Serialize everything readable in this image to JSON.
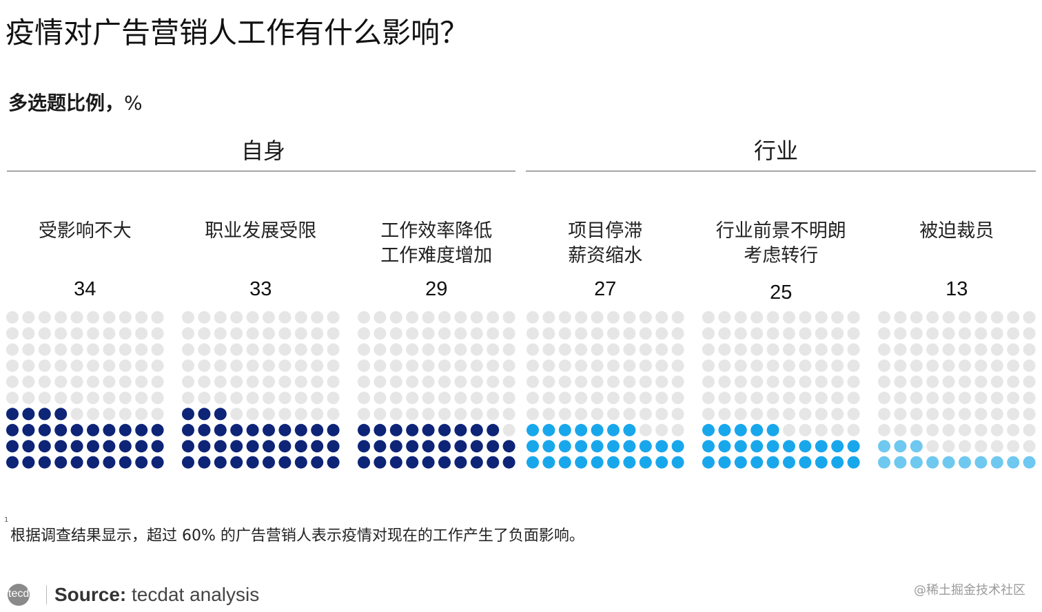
{
  "title": "疫情对广告营销人工作有什么影响？",
  "subtitle": {
    "bold": "多选题比例，",
    "unit": "%"
  },
  "colors": {
    "dark_navy": "#0d2477",
    "bright_blue": "#19a7ec",
    "light_blue": "#6fc8f0",
    "empty": "#e6e6e6"
  },
  "chart_data": {
    "type": "waffle",
    "groups": [
      {
        "label": "自身",
        "categories": [
          0,
          1,
          2
        ]
      },
      {
        "label": "行业",
        "categories": [
          3,
          4,
          5
        ]
      }
    ],
    "categories": [
      {
        "label": [
          "受影响不大"
        ],
        "value": 34,
        "color": "#0d2477"
      },
      {
        "label": [
          "职业发展受限"
        ],
        "value": 33,
        "color": "#0d2477"
      },
      {
        "label": [
          "工作效率降低",
          "工作难度增加"
        ],
        "value": 29,
        "color": "#0d2477"
      },
      {
        "label": [
          "项目停滞",
          "薪资缩水"
        ],
        "value": 27,
        "color": "#19a7ec"
      },
      {
        "label": [
          "行业前景不明朗",
          "考虑转行"
        ],
        "value": 25,
        "color": "#19a7ec"
      },
      {
        "label": [
          "被迫裁员"
        ],
        "value": 13,
        "color": "#6fc8f0"
      }
    ],
    "grid": {
      "rows": 10,
      "cols": 10
    }
  },
  "footnote": {
    "mark": "1",
    "text": "根据调查结果显示，超过 60% 的广告营销人表示疫情对现在的工作产生了负面影响。"
  },
  "logo": {
    "text": "tecdat"
  },
  "source": {
    "label": "Source:",
    "text": "tecdat analysis"
  },
  "watermark": "@稀土掘金技术社区"
}
